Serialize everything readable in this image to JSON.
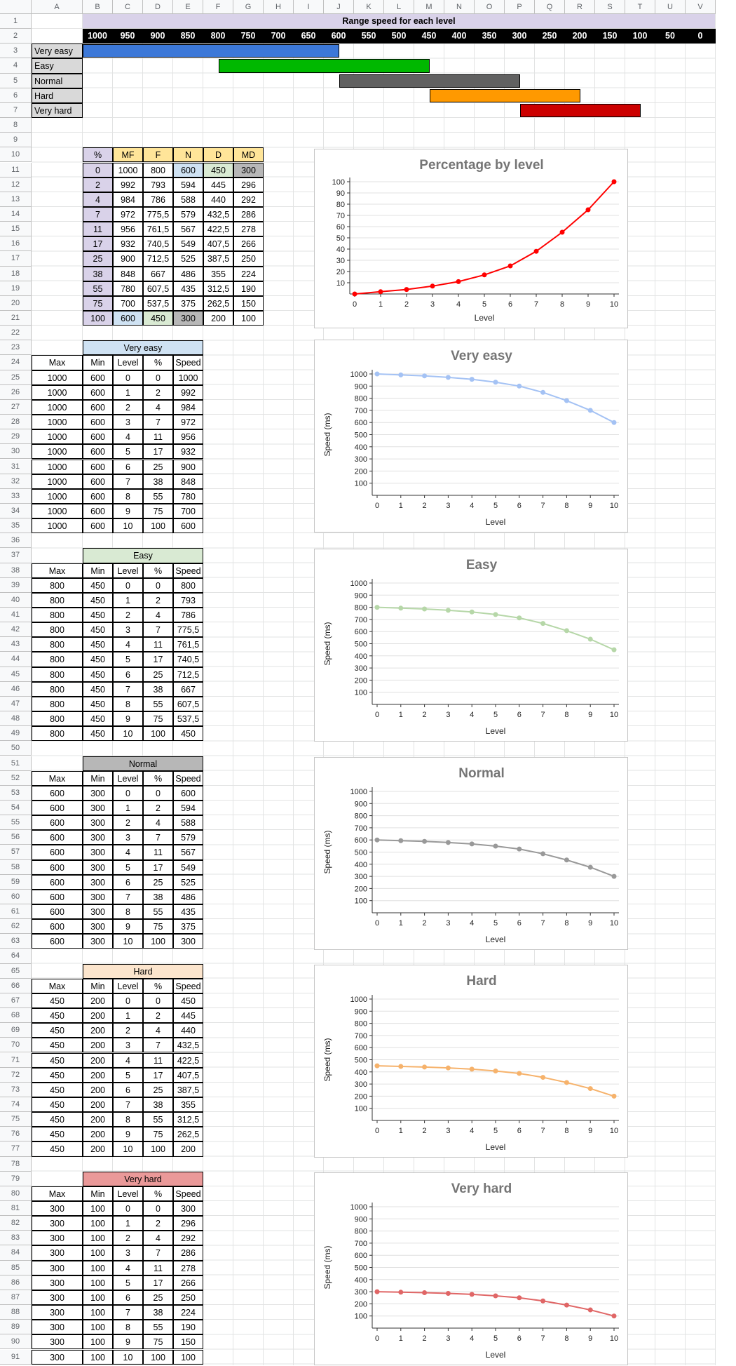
{
  "columns": [
    "A",
    "B",
    "C",
    "D",
    "E",
    "F",
    "G",
    "H",
    "I",
    "J",
    "K",
    "L",
    "M",
    "N",
    "O",
    "P",
    "Q",
    "R",
    "S",
    "T",
    "U",
    "V"
  ],
  "rows": 91,
  "range_title": "Range speed for each level",
  "range_values": [
    "1000",
    "950",
    "900",
    "850",
    "800",
    "750",
    "700",
    "650",
    "600",
    "550",
    "500",
    "450",
    "400",
    "350",
    "300",
    "250",
    "200",
    "150",
    "100",
    "50",
    "0"
  ],
  "levels": [
    {
      "label": "Very easy",
      "color": "#3c78d8"
    },
    {
      "label": "Easy",
      "color": "#00b800"
    },
    {
      "label": "Normal",
      "color": "#616161"
    },
    {
      "label": "Hard",
      "color": "#ff9900"
    },
    {
      "label": "Very hard",
      "color": "#cc0000"
    }
  ],
  "pct_table": {
    "headers": [
      "%",
      "MF",
      "F",
      "N",
      "D",
      "MD"
    ],
    "rows": [
      [
        "0",
        "1000",
        "800",
        "600",
        "450",
        "300"
      ],
      [
        "2",
        "992",
        "793",
        "594",
        "445",
        "296"
      ],
      [
        "4",
        "984",
        "786",
        "588",
        "440",
        "292"
      ],
      [
        "7",
        "972",
        "775,5",
        "579",
        "432,5",
        "286"
      ],
      [
        "11",
        "956",
        "761,5",
        "567",
        "422,5",
        "278"
      ],
      [
        "17",
        "932",
        "740,5",
        "549",
        "407,5",
        "266"
      ],
      [
        "25",
        "900",
        "712,5",
        "525",
        "387,5",
        "250"
      ],
      [
        "38",
        "848",
        "667",
        "486",
        "355",
        "224"
      ],
      [
        "55",
        "780",
        "607,5",
        "435",
        "312,5",
        "190"
      ],
      [
        "75",
        "700",
        "537,5",
        "375",
        "262,5",
        "150"
      ],
      [
        "100",
        "600",
        "450",
        "300",
        "200",
        "100"
      ]
    ]
  },
  "level_tables": [
    {
      "title": "Very easy",
      "header_color": "#cfe2f3",
      "max": "1000",
      "min": "600",
      "speeds": [
        "1000",
        "992",
        "984",
        "972",
        "956",
        "932",
        "900",
        "848",
        "780",
        "700",
        "600"
      ]
    },
    {
      "title": "Easy",
      "header_color": "#d9ead3",
      "max": "800",
      "min": "450",
      "speeds": [
        "800",
        "793",
        "786",
        "775,5",
        "761,5",
        "740,5",
        "712,5",
        "667",
        "607,5",
        "537,5",
        "450"
      ]
    },
    {
      "title": "Normal",
      "header_color": "#b7b7b7",
      "max": "600",
      "min": "300",
      "speeds": [
        "600",
        "594",
        "588",
        "579",
        "567",
        "549",
        "525",
        "486",
        "435",
        "375",
        "300"
      ]
    },
    {
      "title": "Hard",
      "header_color": "#fce5cd",
      "max": "450",
      "min": "200",
      "speeds": [
        "450",
        "445",
        "440",
        "432,5",
        "422,5",
        "407,5",
        "387,5",
        "355",
        "312,5",
        "262,5",
        "200"
      ]
    },
    {
      "title": "Very hard",
      "header_color": "#ea9999",
      "max": "300",
      "min": "100",
      "speeds": [
        "300",
        "296",
        "292",
        "286",
        "278",
        "266",
        "250",
        "224",
        "190",
        "150",
        "100"
      ]
    }
  ],
  "level_table_headers": [
    "Max",
    "Min",
    "Level",
    "%",
    "Speed"
  ],
  "level_numbers": [
    "0",
    "1",
    "2",
    "3",
    "4",
    "5",
    "6",
    "7",
    "8",
    "9",
    "10"
  ],
  "percentages": [
    "0",
    "2",
    "4",
    "7",
    "11",
    "17",
    "25",
    "38",
    "55",
    "75",
    "100"
  ],
  "chart_data": [
    {
      "type": "line",
      "title": "Percentage by level",
      "xlabel": "Level",
      "ylabel": "",
      "color": "#ff0000",
      "x": [
        0,
        1,
        2,
        3,
        4,
        5,
        6,
        7,
        8,
        9,
        10
      ],
      "y": [
        0,
        2,
        4,
        7,
        11,
        17,
        25,
        38,
        55,
        75,
        100
      ],
      "ylim": [
        0,
        100
      ],
      "yticks": [
        10,
        20,
        30,
        40,
        50,
        60,
        70,
        80,
        90,
        100
      ],
      "grid": true
    },
    {
      "type": "line",
      "title": "Very easy",
      "xlabel": "Level",
      "ylabel": "Speed (ms)",
      "color": "#a4c2f4",
      "x": [
        0,
        1,
        2,
        3,
        4,
        5,
        6,
        7,
        8,
        9,
        10
      ],
      "y": [
        1000,
        992,
        984,
        972,
        956,
        932,
        900,
        848,
        780,
        700,
        600
      ],
      "ylim": [
        0,
        1000
      ],
      "yticks": [
        100,
        200,
        300,
        400,
        500,
        600,
        700,
        800,
        900,
        1000
      ],
      "grid": true
    },
    {
      "type": "line",
      "title": "Easy",
      "xlabel": "Level",
      "ylabel": "Speed (ms)",
      "color": "#b6d7a8",
      "x": [
        0,
        1,
        2,
        3,
        4,
        5,
        6,
        7,
        8,
        9,
        10
      ],
      "y": [
        800,
        793,
        786,
        775.5,
        761.5,
        740.5,
        712.5,
        667,
        607.5,
        537.5,
        450
      ],
      "ylim": [
        0,
        1000
      ],
      "yticks": [
        100,
        200,
        300,
        400,
        500,
        600,
        700,
        800,
        900,
        1000
      ],
      "grid": true
    },
    {
      "type": "line",
      "title": "Normal",
      "xlabel": "Level",
      "ylabel": "Speed (ms)",
      "color": "#999999",
      "x": [
        0,
        1,
        2,
        3,
        4,
        5,
        6,
        7,
        8,
        9,
        10
      ],
      "y": [
        600,
        594,
        588,
        579,
        567,
        549,
        525,
        486,
        435,
        375,
        300
      ],
      "ylim": [
        0,
        1000
      ],
      "yticks": [
        100,
        200,
        300,
        400,
        500,
        600,
        700,
        800,
        900,
        1000
      ],
      "grid": true
    },
    {
      "type": "line",
      "title": "Hard",
      "xlabel": "Level",
      "ylabel": "Speed (ms)",
      "color": "#f6b26b",
      "x": [
        0,
        1,
        2,
        3,
        4,
        5,
        6,
        7,
        8,
        9,
        10
      ],
      "y": [
        450,
        445,
        440,
        432.5,
        422.5,
        407.5,
        387.5,
        355,
        312.5,
        262.5,
        200
      ],
      "ylim": [
        0,
        1000
      ],
      "yticks": [
        100,
        200,
        300,
        400,
        500,
        600,
        700,
        800,
        900,
        1000
      ],
      "grid": true
    },
    {
      "type": "line",
      "title": "Very hard",
      "xlabel": "Level",
      "ylabel": "Speed (ms)",
      "color": "#e06666",
      "x": [
        0,
        1,
        2,
        3,
        4,
        5,
        6,
        7,
        8,
        9,
        10
      ],
      "y": [
        300,
        296,
        292,
        286,
        278,
        266,
        250,
        224,
        190,
        150,
        100
      ],
      "ylim": [
        0,
        1000
      ],
      "yticks": [
        100,
        200,
        300,
        400,
        500,
        600,
        700,
        800,
        900,
        1000
      ],
      "grid": true
    }
  ]
}
